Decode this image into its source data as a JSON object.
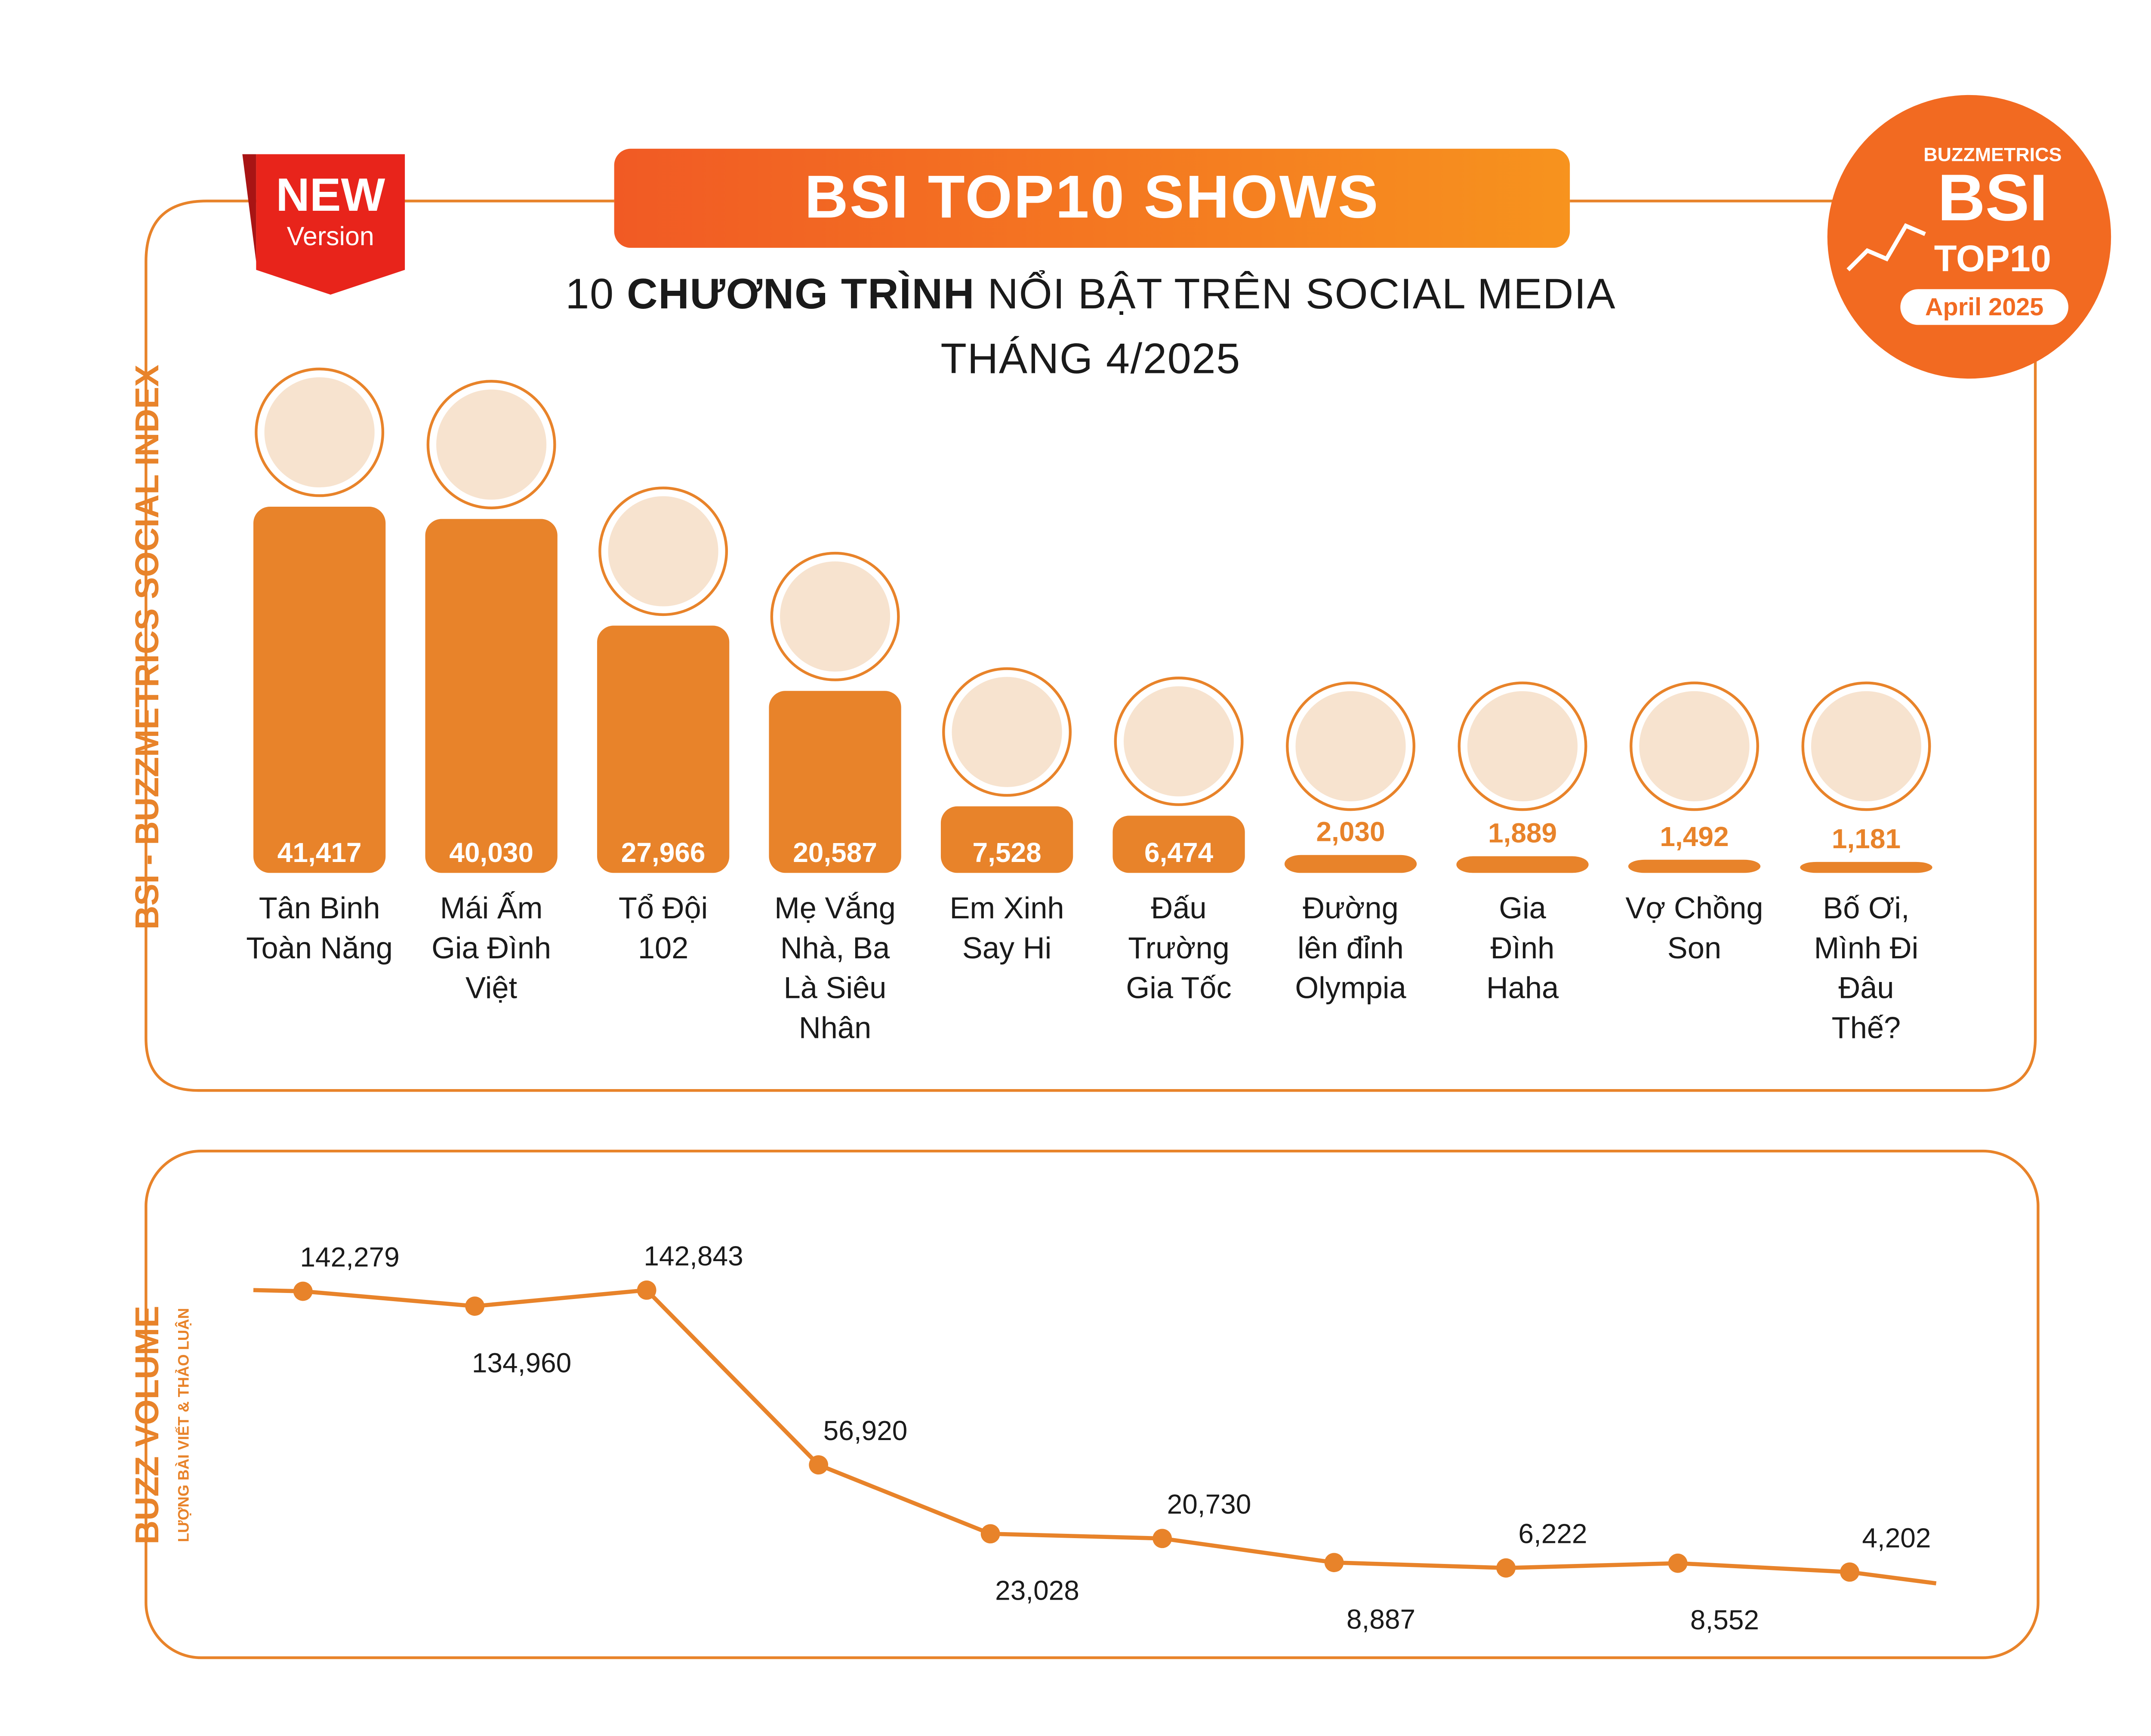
{
  "header": {
    "title": "BSI TOP10 SHOWS",
    "subtitle_prefix": "10",
    "subtitle_bold": "CHƯƠNG TRÌNH",
    "subtitle_rest": "NỔI BẬT TRÊN SOCIAL MEDIA",
    "subtitle_line2": "THÁNG 4/2025",
    "badge_new": "NEW",
    "badge_version": "Version"
  },
  "brand": {
    "name": "BUZZMETRICS",
    "big": "BSI",
    "top": "TOP10",
    "period": "April 2025"
  },
  "colors": {
    "accent": "#e8832a",
    "gradient_start": "#f15a24",
    "gradient_end": "#f7931e"
  },
  "chart_data": [
    {
      "type": "bar",
      "ylabel": "BSI - BUZZMETRICS SOCIAL INDEX",
      "categories": [
        "Tân Binh Toàn Năng",
        "Mái Ấm Gia Đình Việt",
        "Tổ Đội 102",
        "Mẹ Vắng Nhà, Ba Là Siêu Nhân",
        "Em Xinh Say Hi",
        "Đấu Trường Gia Tốc",
        "Đường lên đỉnh Olympia",
        "Gia Đình Haha",
        "Vợ Chồng Son",
        "Bố Ơi, Mình Đi Đâu Thế?"
      ],
      "label_lines": [
        [
          "Tân Binh",
          "Toàn Năng"
        ],
        [
          "Mái Ấm",
          "Gia Đình",
          "Việt"
        ],
        [
          "Tổ Đội",
          "102"
        ],
        [
          "Mẹ Vắng",
          "Nhà, Ba",
          "Là Siêu",
          "Nhân"
        ],
        [
          "Em Xinh",
          "Say Hi"
        ],
        [
          "Đấu",
          "Trường",
          "Gia Tốc"
        ],
        [
          "Đường",
          "lên đỉnh",
          "Olympia"
        ],
        [
          "Gia",
          "Đình",
          "Haha"
        ],
        [
          "Vợ Chồng",
          "Son"
        ],
        [
          "Bố Ơi,",
          "Mình Đi",
          "Đâu",
          "Thế?"
        ]
      ],
      "values": [
        41417,
        40030,
        27966,
        20587,
        7528,
        6474,
        2030,
        1889,
        1492,
        1181
      ],
      "value_labels": [
        "41,417",
        "40,030",
        "27,966",
        "20,587",
        "7,528",
        "6,474",
        "2,030",
        "1,889",
        "1,492",
        "1,181"
      ]
    },
    {
      "type": "line",
      "ylabel": "BUZZ VOLUME",
      "ylabel_sub": "LƯỢNG BÀI VIẾT & THẢO LUẬN",
      "values": [
        142279,
        134960,
        142843,
        56920,
        23028,
        20730,
        8887,
        6222,
        8552,
        4202
      ],
      "value_labels": [
        "142,279",
        "134,960",
        "142,843",
        "56,920",
        "23,028",
        "20,730",
        "8,887",
        "6,222",
        "8,552",
        "4,202"
      ],
      "label_position": [
        "above",
        "below",
        "above",
        "above",
        "below",
        "above",
        "below",
        "above",
        "below",
        "above"
      ]
    }
  ]
}
